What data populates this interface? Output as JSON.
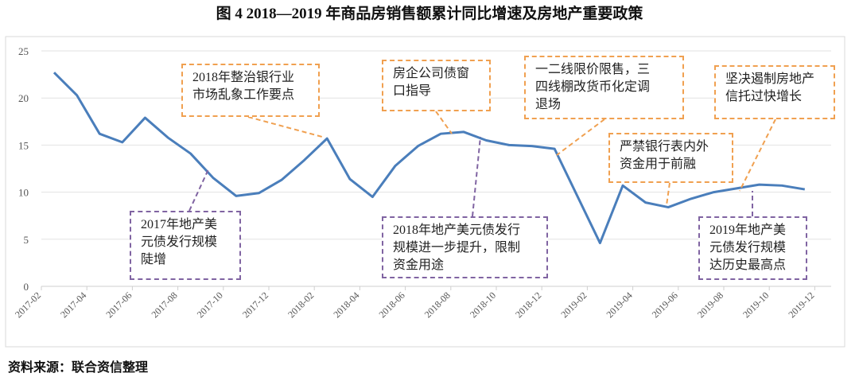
{
  "title": "图 4   2018—2019 年商品房销售额累计同比增速及房地产重要政策",
  "source": "资料来源：联合资信整理",
  "colors": {
    "line": "#4a7ebb",
    "policy_orange": "#f0a050",
    "bond_purple": "#8064a2",
    "grid": "#e2e2e2"
  },
  "chart_data": {
    "type": "line",
    "title": "",
    "xlabel": "",
    "ylabel": "",
    "ylim": [
      0,
      25
    ],
    "yticks": [
      0,
      5,
      10,
      15,
      20,
      25
    ],
    "grid": true,
    "xtick_labels": [
      "2017-02",
      "2017-04",
      "2017-06",
      "2017-08",
      "2017-10",
      "2017-12",
      "2018-02",
      "2018-04",
      "2018-06",
      "2018-08",
      "2018-10",
      "2018-12",
      "2019-02",
      "2019-04",
      "2019-06",
      "2019-08",
      "2019-10",
      "2019-12"
    ],
    "series": [
      {
        "x": [
          "2017-02",
          "2017-03",
          "2017-04",
          "2017-05",
          "2017-06",
          "2017-07",
          "2017-08",
          "2017-09",
          "2017-10",
          "2017-11",
          "2017-12",
          "2018-01",
          "2018-02",
          "2018-03",
          "2018-04",
          "2018-05",
          "2018-06",
          "2018-07",
          "2018-08",
          "2018-09",
          "2018-10",
          "2018-11",
          "2018-12",
          "2019-02",
          "2019-03",
          "2019-04",
          "2019-05",
          "2019-06",
          "2019-07",
          "2019-08",
          "2019-09",
          "2019-10",
          "2019-11"
        ],
        "values": [
          22.7,
          20.3,
          16.2,
          15.3,
          17.9,
          15.8,
          14.1,
          11.5,
          9.6,
          9.9,
          11.3,
          13.4,
          15.7,
          11.4,
          9.5,
          12.8,
          14.9,
          16.2,
          16.4,
          15.5,
          15.0,
          14.9,
          14.6,
          4.6,
          10.7,
          8.9,
          8.4,
          9.3,
          10.0,
          10.4,
          10.8,
          10.7,
          10.3
        ]
      }
    ],
    "annotations": [
      {
        "text": "2018年整治银行业\n市场乱象工作要点",
        "kind": "policy"
      },
      {
        "text": "房企公司债窗\n口指导",
        "kind": "policy"
      },
      {
        "text": "一二线限价限售，三\n四线棚改货币化定调\n退场",
        "kind": "policy"
      },
      {
        "text": "严禁银行表内外\n资金用于前融",
        "kind": "policy"
      },
      {
        "text": "坚决遏制房地产\n信托过快增长",
        "kind": "policy"
      },
      {
        "text": "2017年地产美\n元债发行规模\n陡增",
        "kind": "bond"
      },
      {
        "text": "2018年地产美元债发行\n规模进一步提升，限制\n资金用途",
        "kind": "bond"
      },
      {
        "text": "2019年地产美\n元债发行规模\n达历史最高点",
        "kind": "bond"
      }
    ]
  }
}
